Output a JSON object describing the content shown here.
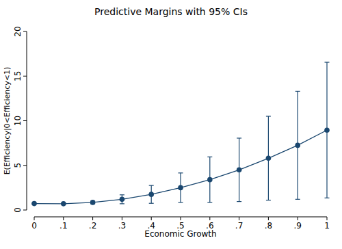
{
  "chart_data": {
    "type": "line",
    "title": "Predictive Margins with 95% CIs",
    "x_label": "Economic Growth",
    "y_label": "E(Efficiency|0<Efficiency<1)",
    "x": [
      0,
      0.1,
      0.2,
      0.3,
      0.4,
      0.5,
      0.6,
      0.7,
      0.8,
      0.9,
      1
    ],
    "series": [
      {
        "name": "Predictive margin",
        "color": "#1a476f",
        "marker": "circle",
        "line_style": "solid",
        "values": [
          0.72,
          0.7,
          0.85,
          1.2,
          1.75,
          2.5,
          3.4,
          4.5,
          5.8,
          7.25,
          8.95
        ],
        "error": [
          0.05,
          0.05,
          0.15,
          0.5,
          1.0,
          1.65,
          2.55,
          3.55,
          4.7,
          6.05,
          7.6
        ]
      }
    ],
    "xlim": [
      0,
      1
    ],
    "xticks": [
      0,
      {
        "value": 0.1,
        "label": ".1"
      },
      {
        "value": 0.2,
        "label": ".2"
      },
      {
        "value": 0.3,
        "label": ".3"
      },
      {
        "value": 0.4,
        "label": ".4"
      },
      {
        "value": 0.5,
        "label": ".5"
      },
      {
        "value": 0.6,
        "label": ".6"
      },
      {
        "value": 0.7,
        "label": ".7"
      },
      {
        "value": 0.8,
        "label": ".8"
      },
      {
        "value": 0.9,
        "label": ".9"
      },
      1
    ],
    "ylim": [
      0,
      20
    ],
    "yticks": [
      0,
      5,
      10,
      15,
      20
    ],
    "grid": false
  }
}
